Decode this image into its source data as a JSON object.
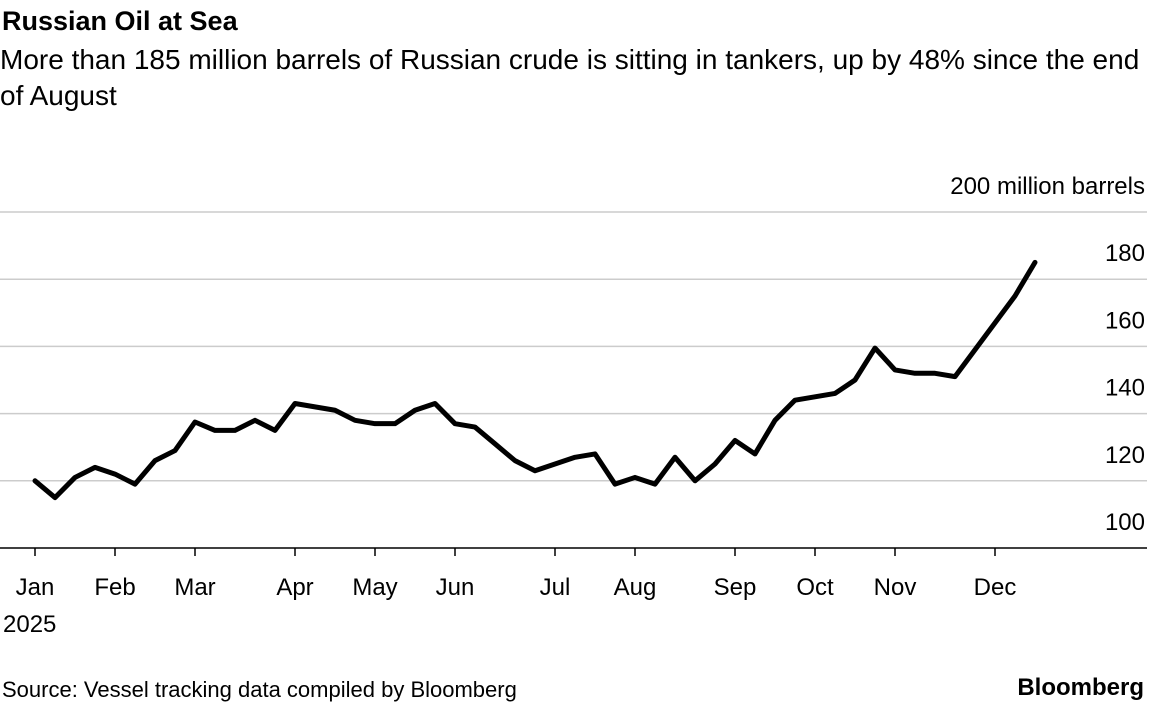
{
  "chart_data": {
    "type": "line",
    "title": "Russian Oil at Sea",
    "subtitle": "More than 185 million barrels of Russian crude is sitting in tankers, up by 48% since the end of August",
    "xlabel": "2025",
    "source": "Source: Vessel tracking data compiled by Bloomberg",
    "brand": "Bloomberg",
    "color": "#000000",
    "grid": true,
    "categories": [
      "Jan",
      null,
      null,
      null,
      "Feb",
      null,
      null,
      null,
      "Mar",
      null,
      null,
      null,
      null,
      "Apr",
      null,
      null,
      null,
      "May",
      null,
      null,
      null,
      "Jun",
      null,
      null,
      null,
      null,
      "Jul",
      null,
      null,
      null,
      "Aug",
      null,
      null,
      null,
      null,
      "Sep",
      null,
      null,
      null,
      "Oct",
      null,
      null,
      null,
      "Nov",
      null,
      null,
      null,
      null,
      "Dec",
      null,
      null
    ],
    "values": [
      120,
      115,
      121,
      124,
      122,
      119,
      126,
      129,
      137.5,
      135,
      135,
      138,
      135,
      143,
      142,
      141,
      138,
      137,
      137,
      141,
      143,
      137,
      136,
      131,
      126,
      123,
      125,
      127,
      128,
      119,
      121,
      119,
      127,
      120,
      125,
      132,
      128,
      138,
      144,
      145,
      146,
      150,
      159.5,
      153,
      152,
      152,
      151,
      159,
      167,
      175,
      185
    ],
    "ylim": [
      100,
      200
    ],
    "yticks": [
      100,
      120,
      140,
      160,
      180,
      {
        "value": 200,
        "label": "200 million barrels"
      }
    ]
  }
}
